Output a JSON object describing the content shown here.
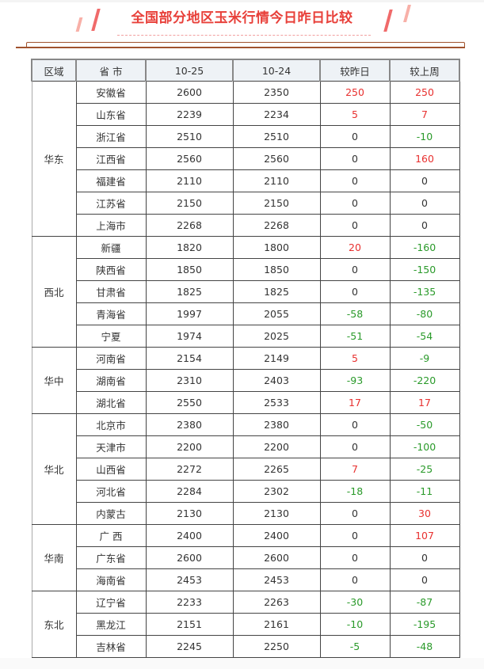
{
  "title": "全国部分地区玉米行情今日昨日比较",
  "colors": {
    "up": "#e8302f",
    "down": "#2a9a2a",
    "title": "#e8403a"
  },
  "headers": [
    "区域",
    "省 市",
    "10-25",
    "10-24",
    "较昨日",
    "较上周"
  ],
  "groups": [
    {
      "region": "华东",
      "rows": [
        [
          "安徽省",
          "2600",
          "2350",
          "250",
          "250"
        ],
        [
          "山东省",
          "2239",
          "2234",
          "5",
          "7"
        ],
        [
          "浙江省",
          "2510",
          "2510",
          "0",
          "-10"
        ],
        [
          "江西省",
          "2560",
          "2560",
          "0",
          "160"
        ],
        [
          "福建省",
          "2110",
          "2110",
          "0",
          "0"
        ],
        [
          "江苏省",
          "2150",
          "2150",
          "0",
          "0"
        ],
        [
          "上海市",
          "2268",
          "2268",
          "0",
          "0"
        ]
      ]
    },
    {
      "region": "西北",
      "rows": [
        [
          "新疆",
          "1820",
          "1800",
          "20",
          "-160"
        ],
        [
          "陕西省",
          "1850",
          "1850",
          "0",
          "-150"
        ],
        [
          "甘肃省",
          "1825",
          "1825",
          "0",
          "-135"
        ],
        [
          "青海省",
          "1997",
          "2055",
          "-58",
          "-80"
        ],
        [
          "宁夏",
          "1974",
          "2025",
          "-51",
          "-54"
        ]
      ]
    },
    {
      "region": "华中",
      "rows": [
        [
          "河南省",
          "2154",
          "2149",
          "5",
          "-9"
        ],
        [
          "湖南省",
          "2310",
          "2403",
          "-93",
          "-220"
        ],
        [
          "湖北省",
          "2550",
          "2533",
          "17",
          "17"
        ]
      ]
    },
    {
      "region": "华北",
      "rows": [
        [
          "北京市",
          "2380",
          "2380",
          "0",
          "-50"
        ],
        [
          "天津市",
          "2200",
          "2200",
          "0",
          "-100"
        ],
        [
          "山西省",
          "2272",
          "2265",
          "7",
          "-25"
        ],
        [
          "河北省",
          "2284",
          "2302",
          "-18",
          "-11"
        ],
        [
          "内蒙古",
          "2130",
          "2130",
          "0",
          "30"
        ]
      ]
    },
    {
      "region": "华南",
      "rows": [
        [
          "广 西",
          "2400",
          "2400",
          "0",
          "107"
        ],
        [
          "广东省",
          "2600",
          "2600",
          "0",
          "0"
        ],
        [
          "海南省",
          "2453",
          "2453",
          "0",
          "0"
        ]
      ]
    },
    {
      "region": "东北",
      "rows": [
        [
          "辽宁省",
          "2233",
          "2263",
          "-30",
          "-87"
        ],
        [
          "黑龙江",
          "2151",
          "2161",
          "-10",
          "-195"
        ],
        [
          "吉林省",
          "2245",
          "2250",
          "-5",
          "-48"
        ]
      ]
    }
  ]
}
